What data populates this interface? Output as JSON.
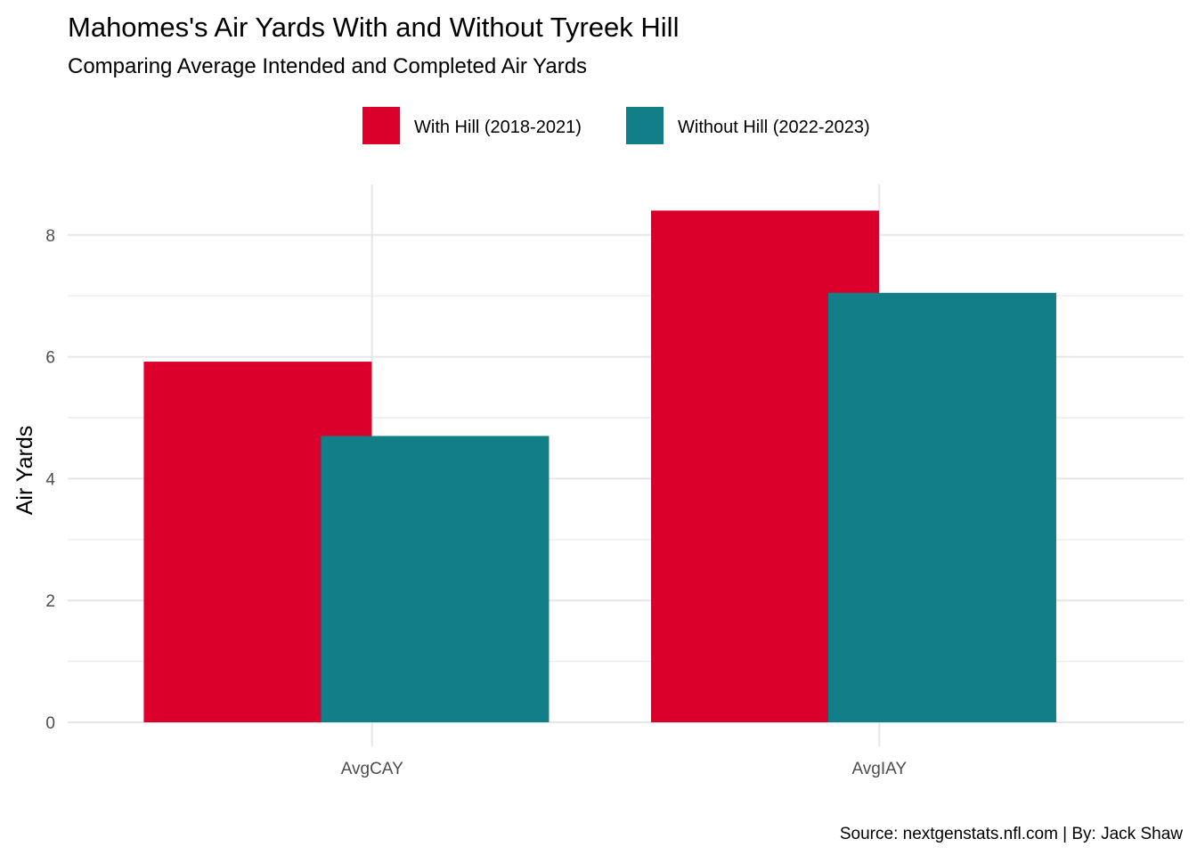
{
  "chart_data": {
    "type": "bar",
    "title": "Mahomes's Air Yards With and Without Tyreek Hill",
    "subtitle": "Comparing Average Intended and Completed Air Yards",
    "xlabel": "",
    "ylabel": "Air Yards",
    "caption": "Source: nextgenstats.nfl.com | By: Jack Shaw",
    "categories": [
      "AvgCAY",
      "AvgIAY"
    ],
    "series": [
      {
        "name": "With Hill (2018-2021)",
        "color": "#DA002B",
        "values": [
          5.92,
          8.4
        ]
      },
      {
        "name": "Without Hill (2022-2023)",
        "color": "#127E87",
        "values": [
          4.7,
          7.05
        ]
      }
    ],
    "ylim": [
      0,
      8.8
    ],
    "yticks": [
      0,
      2,
      4,
      6,
      8
    ],
    "yticks_minor": [
      1,
      3,
      5,
      7
    ],
    "grid": true,
    "legend_position": "top"
  }
}
